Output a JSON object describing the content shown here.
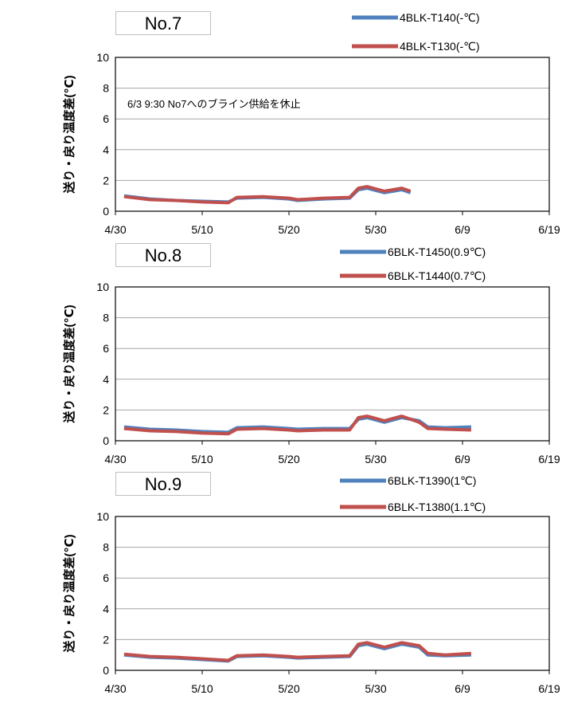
{
  "chart_data": [
    {
      "type": "line",
      "panel_label": "No.7",
      "ylabel": "送り・戻り温度差(℃)",
      "ylim": [
        0,
        10
      ],
      "yticks": [
        0,
        2,
        4,
        6,
        8,
        10
      ],
      "xlim": [
        "4/30",
        "6/19"
      ],
      "xticks": [
        "4/30",
        "5/10",
        "5/20",
        "5/30",
        "6/9",
        "6/19"
      ],
      "grid": true,
      "legend_position": "top-right",
      "annotation": "6/3 9:30  No7へのブライン供給を休止",
      "series": [
        {
          "name": "4BLK-T140(-℃)",
          "color": "#4f81bd",
          "x": [
            "5/1",
            "5/4",
            "5/7",
            "5/10",
            "5/13",
            "5/14",
            "5/17",
            "5/20",
            "5/21",
            "5/24",
            "5/27",
            "5/28",
            "5/29",
            "5/31",
            "6/2",
            "6/3"
          ],
          "y": [
            1.0,
            0.8,
            0.7,
            0.65,
            0.6,
            0.85,
            0.9,
            0.8,
            0.7,
            0.8,
            0.85,
            1.4,
            1.5,
            1.2,
            1.4,
            1.2
          ]
        },
        {
          "name": "4BLK-T130(-℃)",
          "color": "#c0504d",
          "x": [
            "5/1",
            "5/4",
            "5/7",
            "5/10",
            "5/13",
            "5/14",
            "5/17",
            "5/20",
            "5/21",
            "5/24",
            "5/27",
            "5/28",
            "5/29",
            "5/31",
            "6/2",
            "6/3"
          ],
          "y": [
            0.95,
            0.75,
            0.7,
            0.6,
            0.55,
            0.9,
            0.95,
            0.85,
            0.75,
            0.85,
            0.9,
            1.5,
            1.6,
            1.3,
            1.5,
            1.3
          ]
        }
      ]
    },
    {
      "type": "line",
      "panel_label": "No.8",
      "ylabel": "送り・戻り温度差(℃)",
      "ylim": [
        0,
        10
      ],
      "yticks": [
        0,
        2,
        4,
        6,
        8,
        10
      ],
      "xlim": [
        "4/30",
        "6/19"
      ],
      "xticks": [
        "4/30",
        "5/10",
        "5/20",
        "5/30",
        "6/9",
        "6/19"
      ],
      "grid": true,
      "legend_position": "top-right",
      "series": [
        {
          "name": "6BLK-T1450(0.9℃)",
          "color": "#4f81bd",
          "x": [
            "5/1",
            "5/4",
            "5/7",
            "5/10",
            "5/13",
            "5/14",
            "5/17",
            "5/20",
            "5/21",
            "5/24",
            "5/27",
            "5/28",
            "5/29",
            "5/31",
            "6/2",
            "6/4",
            "6/5",
            "6/7",
            "6/10"
          ],
          "y": [
            0.9,
            0.75,
            0.7,
            0.6,
            0.55,
            0.85,
            0.9,
            0.8,
            0.75,
            0.8,
            0.8,
            1.4,
            1.5,
            1.2,
            1.5,
            1.3,
            0.9,
            0.85,
            0.9
          ]
        },
        {
          "name": "6BLK-T1440(0.7℃)",
          "color": "#c0504d",
          "x": [
            "5/1",
            "5/4",
            "5/7",
            "5/10",
            "5/13",
            "5/14",
            "5/17",
            "5/20",
            "5/21",
            "5/24",
            "5/27",
            "5/28",
            "5/29",
            "5/31",
            "6/2",
            "6/4",
            "6/5",
            "6/7",
            "6/10"
          ],
          "y": [
            0.8,
            0.65,
            0.6,
            0.5,
            0.45,
            0.75,
            0.8,
            0.7,
            0.65,
            0.7,
            0.7,
            1.5,
            1.6,
            1.3,
            1.6,
            1.2,
            0.8,
            0.75,
            0.7
          ]
        }
      ]
    },
    {
      "type": "line",
      "panel_label": "No.9",
      "ylabel": "送り・戻り温度差(℃)",
      "ylim": [
        0,
        10
      ],
      "yticks": [
        0,
        2,
        4,
        6,
        8,
        10
      ],
      "xlim": [
        "4/30",
        "6/19"
      ],
      "xticks": [
        "4/30",
        "5/10",
        "5/20",
        "5/30",
        "6/9",
        "6/19"
      ],
      "grid": true,
      "legend_position": "top-right",
      "series": [
        {
          "name": "6BLK-T1390(1℃)",
          "color": "#4f81bd",
          "x": [
            "5/1",
            "5/4",
            "5/7",
            "5/10",
            "5/13",
            "5/14",
            "5/17",
            "5/20",
            "5/21",
            "5/24",
            "5/27",
            "5/28",
            "5/29",
            "5/31",
            "6/2",
            "6/4",
            "6/5",
            "6/7",
            "6/10"
          ],
          "y": [
            1.0,
            0.85,
            0.8,
            0.7,
            0.6,
            0.9,
            0.95,
            0.85,
            0.8,
            0.85,
            0.9,
            1.6,
            1.7,
            1.4,
            1.7,
            1.5,
            1.0,
            0.95,
            1.0
          ]
        },
        {
          "name": "6BLK-T1380(1.1℃)",
          "color": "#c0504d",
          "x": [
            "5/1",
            "5/4",
            "5/7",
            "5/10",
            "5/13",
            "5/14",
            "5/17",
            "5/20",
            "5/21",
            "5/24",
            "5/27",
            "5/28",
            "5/29",
            "5/31",
            "6/2",
            "6/4",
            "6/5",
            "6/7",
            "6/10"
          ],
          "y": [
            1.05,
            0.9,
            0.85,
            0.75,
            0.65,
            0.95,
            1.0,
            0.9,
            0.85,
            0.9,
            0.95,
            1.7,
            1.8,
            1.5,
            1.8,
            1.6,
            1.1,
            1.0,
            1.1
          ]
        }
      ]
    }
  ]
}
